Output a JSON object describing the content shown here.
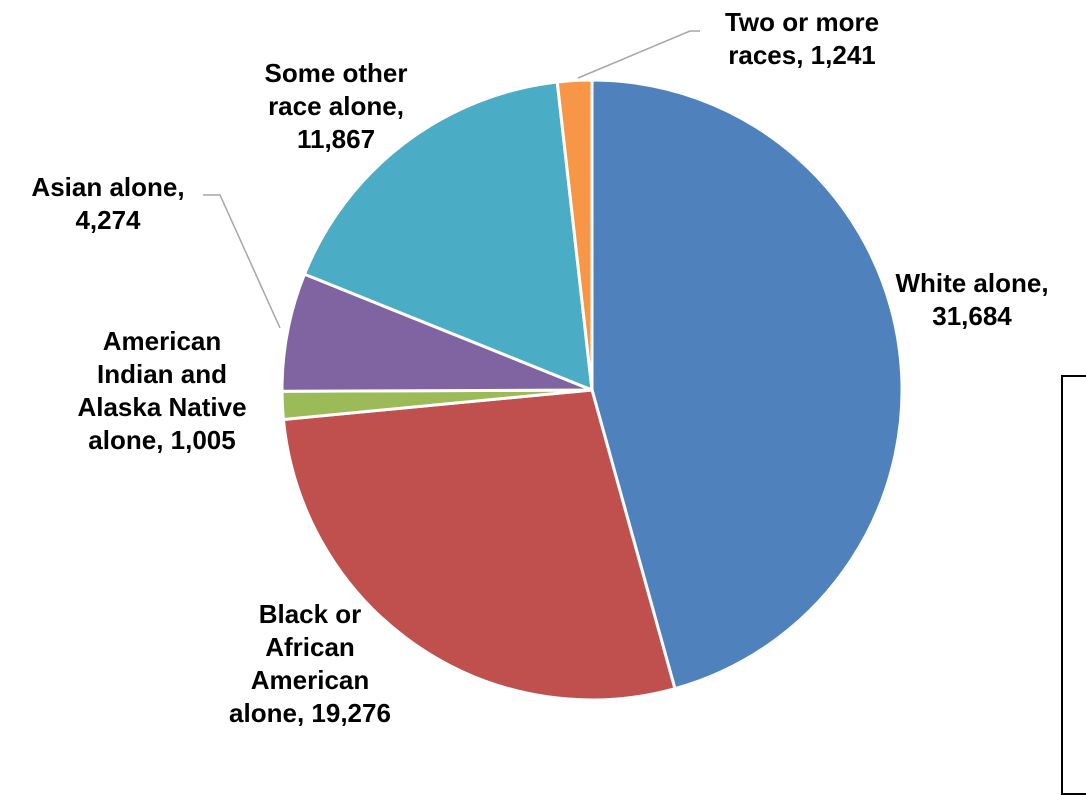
{
  "chart_data": {
    "type": "pie",
    "title": "",
    "slices": [
      {
        "label_lines": [
          "White alone,",
          "31,684"
        ],
        "value": 31684,
        "color": "#4F81BD"
      },
      {
        "label_lines": [
          "Black or",
          "African",
          "American",
          "alone, 19,276"
        ],
        "value": 19276,
        "color": "#C0504D"
      },
      {
        "label_lines": [
          "American",
          "Indian and",
          "Alaska Native",
          "alone,  1,005"
        ],
        "value": 1005,
        "color": "#9BBB59"
      },
      {
        "label_lines": [
          "Asian alone,",
          "4,274"
        ],
        "value": 4274,
        "color": "#8064A2"
      },
      {
        "label_lines": [
          "Some other",
          "race alone,",
          "11,867"
        ],
        "value": 11867,
        "color": "#4BACC6"
      },
      {
        "label_lines": [
          "Two or more",
          "races, 1,241"
        ],
        "value": 1241,
        "color": "#F79646"
      }
    ],
    "start": "12 o'clock",
    "direction": "clockwise",
    "legend": "none",
    "slice_border_color": "#ffffff"
  }
}
